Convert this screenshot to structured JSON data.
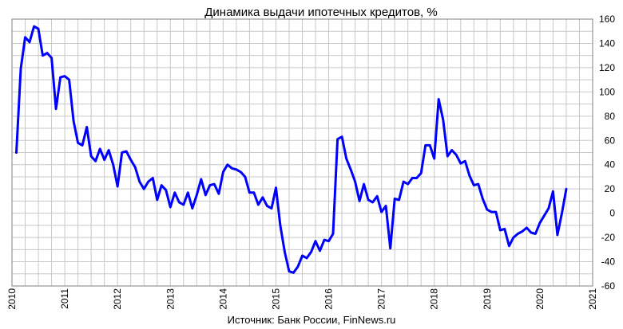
{
  "chart_data": {
    "type": "line",
    "title": "Динамика выдачи ипотечных кредитов, %",
    "source_note": "Источник: Банк России, FinNews.ru",
    "xlabel": "",
    "ylabel": "",
    "x_ticks": [
      "2010",
      "2011",
      "2012",
      "2013",
      "2014",
      "2015",
      "2016",
      "2017",
      "2018",
      "2019",
      "2020",
      "2021"
    ],
    "y_ticks": [
      "-60",
      "-40",
      "-20",
      "0",
      "20",
      "40",
      "60",
      "80",
      "100",
      "120",
      "140",
      "160"
    ],
    "xlim": [
      2010,
      2021
    ],
    "ylim": [
      -60,
      160
    ],
    "grid": true,
    "line_color": "#0000ff",
    "series": [
      {
        "name": "",
        "x": [
          2010.083,
          2010.167,
          2010.25,
          2010.333,
          2010.417,
          2010.5,
          2010.583,
          2010.667,
          2010.75,
          2010.833,
          2010.917,
          2011.0,
          2011.083,
          2011.167,
          2011.25,
          2011.333,
          2011.417,
          2011.5,
          2011.583,
          2011.667,
          2011.75,
          2011.833,
          2011.917,
          2012.0,
          2012.083,
          2012.167,
          2012.25,
          2012.333,
          2012.417,
          2012.5,
          2012.583,
          2012.667,
          2012.75,
          2012.833,
          2012.917,
          2013.0,
          2013.083,
          2013.167,
          2013.25,
          2013.333,
          2013.417,
          2013.5,
          2013.583,
          2013.667,
          2013.75,
          2013.833,
          2013.917,
          2014.0,
          2014.083,
          2014.167,
          2014.25,
          2014.333,
          2014.417,
          2014.5,
          2014.583,
          2014.667,
          2014.75,
          2014.833,
          2014.917,
          2015.0,
          2015.083,
          2015.167,
          2015.25,
          2015.333,
          2015.417,
          2015.5,
          2015.583,
          2015.667,
          2015.75,
          2015.833,
          2015.917,
          2016.0,
          2016.083,
          2016.167,
          2016.25,
          2016.333,
          2016.417,
          2016.5,
          2016.583,
          2016.667,
          2016.75,
          2016.833,
          2016.917,
          2017.0,
          2017.083,
          2017.167,
          2017.25,
          2017.333,
          2017.417,
          2017.5,
          2017.583,
          2017.667,
          2017.75,
          2017.833,
          2017.917,
          2018.0,
          2018.083,
          2018.167,
          2018.25,
          2018.333,
          2018.417,
          2018.5,
          2018.583,
          2018.667,
          2018.75,
          2018.833,
          2018.917,
          2019.0,
          2019.083,
          2019.167,
          2019.25,
          2019.333,
          2019.417,
          2019.5,
          2019.583,
          2019.667,
          2019.75,
          2019.833,
          2019.917,
          2020.0,
          2020.083,
          2020.167,
          2020.25,
          2020.333,
          2020.417,
          2020.5
        ],
        "values": [
          50,
          119,
          145,
          141,
          154,
          152,
          130,
          132,
          128,
          86,
          112,
          113,
          110,
          76,
          58,
          56,
          71,
          47,
          43,
          53,
          44,
          52,
          40,
          22,
          50,
          51,
          44,
          38,
          26,
          20,
          26,
          29,
          11,
          23,
          19,
          5,
          17,
          9,
          7,
          17,
          4,
          15,
          28,
          15,
          23,
          24,
          16,
          34,
          40,
          37,
          36,
          34,
          30,
          17,
          17,
          7,
          13,
          6,
          4,
          21,
          -10,
          -32,
          -48,
          -49,
          -44,
          -35,
          -37,
          -32,
          -23,
          -31,
          -22,
          -23,
          -17,
          61,
          63,
          45,
          36,
          26,
          10,
          24,
          11,
          9,
          14,
          1,
          6,
          -29,
          12,
          11,
          26,
          24,
          29,
          29,
          33,
          56,
          56,
          45,
          94,
          77,
          47,
          52,
          48,
          41,
          43,
          31,
          23,
          24,
          12,
          3,
          1,
          1,
          -14,
          -13,
          -27,
          -20,
          -17,
          -15,
          -12,
          -16,
          -17,
          -8,
          -2,
          4,
          18,
          -18,
          0,
          20
        ]
      }
    ]
  }
}
